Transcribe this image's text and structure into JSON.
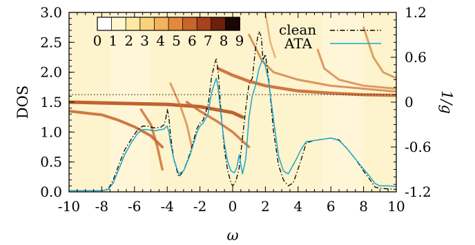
{
  "chart_data": {
    "type": "line",
    "xlabel": "ω",
    "ylabel_left": "DOS",
    "ylabel_right": "1/g",
    "xlim": [
      -10,
      10
    ],
    "ylim_left": [
      0,
      3.0
    ],
    "ylim_right": [
      -1.2,
      1.2
    ],
    "x_ticks": [
      -10,
      -8,
      -6,
      -4,
      -2,
      0,
      2,
      4,
      6,
      8,
      10
    ],
    "x_tick_labels": [
      "-10",
      "-8",
      "-6",
      "-4",
      "-2",
      "0",
      "2",
      "4",
      "6",
      "8",
      "10"
    ],
    "y_left_ticks": [
      0,
      0.5,
      1.0,
      1.5,
      2.0,
      2.5,
      3.0
    ],
    "y_left_tick_labels": [
      "0.0",
      "0.5",
      "1.0",
      "1.5",
      "2.0",
      "2.5",
      "3.0"
    ],
    "y_right_ticks": [
      -1.2,
      -0.6,
      0,
      0.6,
      1.2
    ],
    "y_right_tick_labels": [
      "-1.2",
      "-0.6",
      "0",
      "0.6",
      "1.2"
    ],
    "legend_position": "top-right",
    "colorbar": {
      "labels": [
        "0",
        "1",
        "2",
        "3",
        "4",
        "5",
        "6",
        "7",
        "8",
        "9"
      ],
      "colors": [
        "#ffffff",
        "#fff6cf",
        "#fde9a3",
        "#f9d27a",
        "#f2b35a",
        "#e28a3c",
        "#c9652a",
        "#a7421c",
        "#6e1f0e",
        "#1a0603"
      ]
    },
    "heatmap_background": "#fdf3cd",
    "reference_line": {
      "axis": "right",
      "value": 0.1,
      "style": "dotted"
    },
    "series": [
      {
        "name": "clean",
        "color": "#000000",
        "style": "dash-dot",
        "x": [
          -10,
          -8,
          -7.6,
          -7.3,
          -7,
          -6.6,
          -6.2,
          -5.8,
          -5.5,
          -5.2,
          -4.8,
          -4.4,
          -4.2,
          -4.1,
          -4.0,
          -3.9,
          -3.8,
          -3.6,
          -3.3,
          -3.0,
          -2.6,
          -2.2,
          -2.0,
          -1.8,
          -1.5,
          -1.3,
          -1.1,
          -1.0,
          -0.9,
          -0.7,
          -0.5,
          -0.3,
          -0.1,
          0.0,
          0.2,
          0.4,
          0.6,
          0.8,
          1.0,
          1.2,
          1.4,
          1.6,
          1.75,
          1.85,
          2.0,
          2.2,
          2.5,
          2.8,
          3.1,
          3.4,
          3.7,
          3.9,
          4.2,
          4.5,
          5.0,
          5.5,
          6.0,
          6.5,
          7.0,
          7.5,
          8.0,
          8.4,
          8.7,
          9.0,
          9.5,
          10
        ],
        "y": [
          0.02,
          0.02,
          0.05,
          0.2,
          0.42,
          0.7,
          0.88,
          1.04,
          1.1,
          1.1,
          1.07,
          1.08,
          1.12,
          1.2,
          1.38,
          1.25,
          0.95,
          0.55,
          0.25,
          0.35,
          0.65,
          1.05,
          1.15,
          1.2,
          1.45,
          1.9,
          2.15,
          2.22,
          2.05,
          1.3,
          0.7,
          0.35,
          0.15,
          0.1,
          0.18,
          0.4,
          0.9,
          1.4,
          1.8,
          1.9,
          2.4,
          2.68,
          2.6,
          2.2,
          2.3,
          1.9,
          1.0,
          0.45,
          0.2,
          0.1,
          0.15,
          0.3,
          0.55,
          0.82,
          0.86,
          0.88,
          0.9,
          0.87,
          0.72,
          0.55,
          0.35,
          0.2,
          0.08,
          0.06,
          0.05,
          0.04
        ]
      },
      {
        "name": "ATA",
        "color": "#1aa6c8",
        "style": "solid",
        "x": [
          -10,
          -8,
          -7.6,
          -7.3,
          -7,
          -6.6,
          -6.2,
          -5.8,
          -5.5,
          -5.2,
          -4.8,
          -4.4,
          -4.2,
          -4.0,
          -3.9,
          -3.8,
          -3.6,
          -3.3,
          -3.0,
          -2.6,
          -2.2,
          -2.0,
          -1.8,
          -1.5,
          -1.3,
          -1.1,
          -1.0,
          -0.9,
          -0.7,
          -0.5,
          -0.3,
          -0.1,
          0.1,
          0.25,
          0.4,
          0.5,
          0.6,
          0.8,
          1.0,
          1.2,
          1.4,
          1.6,
          1.8,
          1.9,
          2.0,
          2.2,
          2.5,
          2.8,
          3.1,
          3.4,
          3.7,
          3.9,
          4.2,
          4.5,
          5.0,
          5.5,
          6.0,
          6.5,
          7.0,
          7.5,
          8.0,
          8.4,
          8.7,
          9.0,
          9.5,
          10
        ],
        "y": [
          0.02,
          0.02,
          0.04,
          0.15,
          0.35,
          0.62,
          0.82,
          0.98,
          1.04,
          1.04,
          1.02,
          1.04,
          1.05,
          1.1,
          1.0,
          0.82,
          0.55,
          0.3,
          0.35,
          0.62,
          0.98,
          1.1,
          1.15,
          1.3,
          1.65,
          1.82,
          1.9,
          1.75,
          1.25,
          0.8,
          0.5,
          0.35,
          0.32,
          0.4,
          0.62,
          0.45,
          0.3,
          0.55,
          1.25,
          1.6,
          1.78,
          2.05,
          2.2,
          2.18,
          2.1,
          1.85,
          1.2,
          0.6,
          0.35,
          0.3,
          0.45,
          0.55,
          0.72,
          0.84,
          0.86,
          0.88,
          0.9,
          0.86,
          0.72,
          0.55,
          0.38,
          0.25,
          0.14,
          0.1,
          0.1,
          0.09
        ]
      }
    ]
  }
}
